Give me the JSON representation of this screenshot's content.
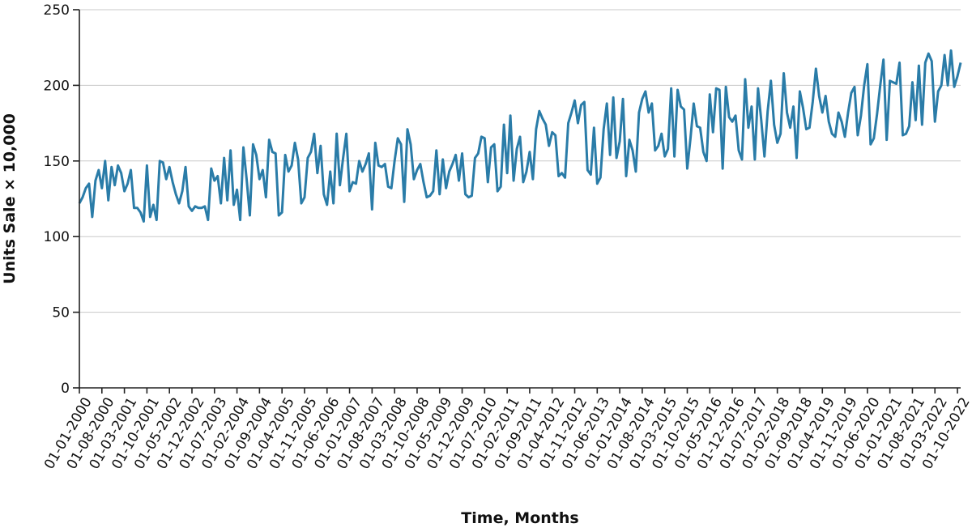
{
  "chart_data": {
    "type": "line",
    "title": "",
    "xlabel": "Time, Months",
    "ylabel": "Units Sale × 10,000",
    "ylim": [
      0,
      250
    ],
    "yticks": [
      "0",
      "50",
      "100",
      "150",
      "200",
      "250"
    ],
    "xtick_labels": [
      "01-01-2000",
      "01-08-2000",
      "01-03-2001",
      "01-10-2001",
      "01-05-2002",
      "01-12-2002",
      "01-07-2003",
      "01-02-2004",
      "01-09-2004",
      "01-04-2005",
      "01-11-2005",
      "01-06-2006",
      "01-01-2007",
      "01-08-2007",
      "01-03-2008",
      "01-10-2008",
      "01-05-2009",
      "01-12-2009",
      "01-07-2010",
      "01-02-2011",
      "01-09-2011",
      "01-04-2012",
      "01-11-2012",
      "01-06-2013",
      "01-01-2014",
      "01-08-2014",
      "01-03-2015",
      "01-10-2015",
      "01-05-2016",
      "01-12-2016",
      "01-07-2017",
      "01-02-2018",
      "01-09-2018",
      "01-04-2019",
      "01-11-2019",
      "01-06-2020",
      "01-01-2021",
      "01-08-2021",
      "01-03-2022",
      "01-10-2022"
    ],
    "grid": true,
    "line_color": "#2a7ca8",
    "x_start": "01-01-2000",
    "x_end": "01-12-2022",
    "series": [
      {
        "values": [
          122,
          126,
          132,
          135,
          113,
          137,
          144,
          132,
          150,
          124,
          146,
          134,
          147,
          142,
          130,
          135,
          144,
          119,
          119,
          116,
          110,
          147,
          113,
          121,
          111,
          150,
          149,
          138,
          146,
          136,
          128,
          122,
          130,
          146,
          120,
          117,
          120,
          119,
          119,
          120,
          111,
          145,
          137,
          140,
          122,
          152,
          124,
          157,
          121,
          131,
          111,
          159,
          138,
          114,
          161,
          154,
          138,
          144,
          126,
          164,
          156,
          155,
          114,
          116,
          154,
          143,
          147,
          162,
          151,
          122,
          126,
          152,
          156,
          168,
          142,
          160,
          128,
          121,
          143,
          122,
          168,
          134,
          152,
          168,
          130,
          136,
          135,
          150,
          143,
          148,
          155,
          118,
          162,
          147,
          146,
          148,
          133,
          132,
          150,
          165,
          161,
          123,
          171,
          161,
          138,
          144,
          148,
          136,
          126,
          127,
          130,
          157,
          128,
          151,
          132,
          143,
          148,
          154,
          137,
          155,
          128,
          126,
          127,
          152,
          155,
          166,
          165,
          136,
          159,
          161,
          130,
          133,
          174,
          142,
          180,
          137,
          158,
          166,
          136,
          143,
          156,
          138,
          171,
          183,
          178,
          174,
          160,
          169,
          167,
          140,
          142,
          139,
          175,
          182,
          190,
          175,
          187,
          189,
          144,
          141,
          172,
          135,
          139,
          171,
          188,
          154,
          192,
          152,
          163,
          191,
          140,
          164,
          157,
          143,
          182,
          191,
          196,
          182,
          188,
          157,
          160,
          168,
          153,
          158,
          198,
          153,
          197,
          186,
          184,
          145,
          165,
          188,
          173,
          172,
          156,
          150,
          194,
          169,
          198,
          197,
          145,
          199,
          179,
          176,
          180,
          157,
          151,
          204,
          172,
          186,
          151,
          198,
          177,
          153,
          183,
          203,
          174,
          162,
          168,
          208,
          182,
          172,
          186,
          152,
          196,
          185,
          171,
          172,
          189,
          211,
          193,
          182,
          193,
          176,
          168,
          166,
          182,
          176,
          166,
          182,
          195,
          199,
          167,
          180,
          200,
          214,
          161,
          165,
          181,
          200,
          217,
          164,
          203,
          202,
          201,
          215,
          167,
          168,
          173,
          202,
          177,
          213,
          174,
          215,
          221,
          216,
          176,
          196,
          200,
          220,
          200,
          223,
          199,
          206,
          215
        ]
      }
    ]
  }
}
